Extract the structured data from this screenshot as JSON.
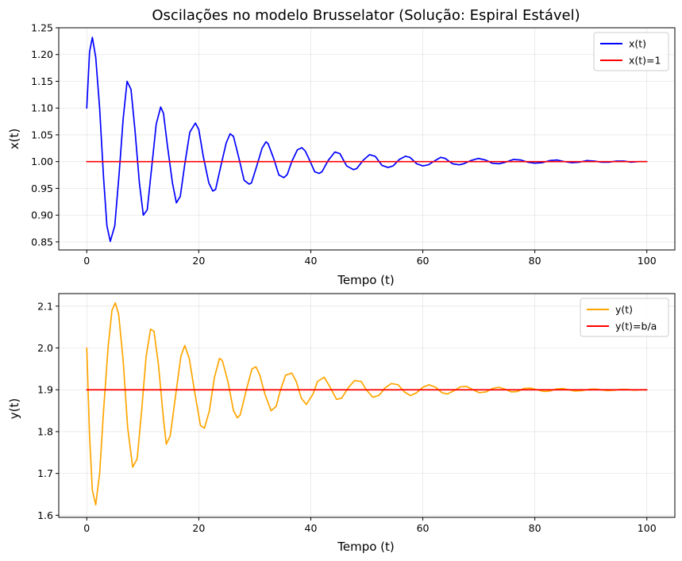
{
  "chart_data": [
    {
      "type": "line",
      "title": "Oscilações no modelo Brusselator (Solução: Espiral Estável)",
      "xlabel": "Tempo (t)",
      "ylabel": "x(t)",
      "xlim": [
        -5,
        105
      ],
      "ylim": [
        0.835,
        1.25
      ],
      "xticks": [
        0,
        20,
        40,
        60,
        80,
        100
      ],
      "xtick_labels": [
        "0",
        "20",
        "40",
        "60",
        "80",
        "100"
      ],
      "yticks": [
        0.85,
        0.9,
        0.95,
        1.0,
        1.05,
        1.1,
        1.15,
        1.2,
        1.25
      ],
      "ytick_labels": [
        "0.85",
        "0.90",
        "0.95",
        "1.00",
        "1.05",
        "1.10",
        "1.15",
        "1.20",
        "1.25"
      ],
      "grid": true,
      "legend_position": "top-right",
      "series": [
        {
          "name": "x(t)",
          "color": "#0000ff",
          "x": [
            0,
            0.5,
            1.0,
            1.6,
            2.3,
            3.0,
            3.6,
            4.2,
            5.0,
            5.8,
            6.5,
            7.2,
            7.9,
            8.6,
            9.4,
            10.1,
            10.8,
            11.6,
            12.4,
            13.2,
            13.7,
            14.4,
            15.3,
            16.0,
            16.7,
            17.5,
            18.4,
            19.4,
            20.0,
            20.8,
            21.8,
            22.5,
            23.0,
            23.9,
            24.9,
            25.6,
            26.2,
            27.2,
            28.1,
            29.0,
            29.4,
            30.3,
            31.3,
            32.0,
            32.4,
            33.4,
            34.3,
            35.2,
            35.8,
            36.6,
            37.6,
            38.4,
            39.0,
            39.9,
            40.7,
            41.5,
            42.0,
            43.1,
            44.3,
            45.2,
            46.4,
            47.6,
            48.2,
            49.4,
            50.5,
            51.5,
            52.7,
            53.8,
            54.7,
            55.8,
            56.9,
            57.7,
            58.9,
            60.0,
            61.0,
            62.2,
            63.2,
            64.0,
            65.3,
            66.5,
            67.3,
            68.6,
            69.9,
            71.2,
            72.4,
            73.6,
            74.8,
            76.2,
            77.5,
            78.7,
            80.0,
            81.3,
            82.7,
            84.0,
            85.3,
            86.6,
            88.0,
            89.3,
            90.6,
            91.9,
            93.2,
            94.6,
            95.9,
            97.2,
            98.5,
            100.0
          ],
          "y": [
            1.1,
            1.205,
            1.232,
            1.195,
            1.1,
            0.97,
            0.88,
            0.851,
            0.88,
            0.98,
            1.08,
            1.15,
            1.135,
            1.06,
            0.96,
            0.9,
            0.91,
            0.99,
            1.07,
            1.102,
            1.09,
            1.03,
            0.96,
            0.923,
            0.935,
            0.995,
            1.055,
            1.072,
            1.06,
            1.01,
            0.96,
            0.945,
            0.948,
            0.99,
            1.035,
            1.052,
            1.047,
            1.005,
            0.965,
            0.958,
            0.96,
            0.99,
            1.025,
            1.037,
            1.033,
            1.005,
            0.975,
            0.97,
            0.976,
            1.0,
            1.022,
            1.026,
            1.02,
            1.0,
            0.981,
            0.978,
            0.981,
            1.002,
            1.018,
            1.015,
            0.992,
            0.985,
            0.987,
            1.003,
            1.013,
            1.01,
            0.993,
            0.989,
            0.992,
            1.004,
            1.01,
            1.008,
            0.996,
            0.992,
            0.994,
            1.002,
            1.008,
            1.006,
            0.996,
            0.994,
            0.996,
            1.002,
            1.006,
            1.003,
            0.997,
            0.996,
            0.999,
            1.004,
            1.003,
            0.999,
            0.997,
            0.998,
            1.002,
            1.003,
            1.0,
            0.998,
            0.999,
            1.002,
            1.001,
            0.999,
            0.999,
            1.001,
            1.001,
            0.999,
            1.0,
            1.0
          ]
        },
        {
          "name": "x(t)=1",
          "color": "#ff0000",
          "x": [
            0,
            100
          ],
          "y": [
            1.0,
            1.0
          ]
        }
      ]
    },
    {
      "type": "line",
      "title": "",
      "xlabel": "Tempo (t)",
      "ylabel": "y(t)",
      "xlim": [
        -5,
        105
      ],
      "ylim": [
        1.595,
        2.13
      ],
      "xticks": [
        0,
        20,
        40,
        60,
        80,
        100
      ],
      "xtick_labels": [
        "0",
        "20",
        "40",
        "60",
        "80",
        "100"
      ],
      "yticks": [
        1.6,
        1.7,
        1.8,
        1.9,
        2.0,
        2.1
      ],
      "ytick_labels": [
        "1.6",
        "1.7",
        "1.8",
        "1.9",
        "2.0",
        "2.1"
      ],
      "grid": true,
      "legend_position": "top-right",
      "series": [
        {
          "name": "y(t)",
          "color": "#ffa500",
          "x": [
            0,
            0.5,
            1.0,
            1.6,
            2.3,
            3.0,
            3.8,
            4.5,
            5.1,
            5.7,
            6.5,
            7.3,
            8.2,
            9.0,
            9.8,
            10.6,
            11.4,
            12.0,
            12.8,
            13.7,
            14.2,
            14.9,
            15.8,
            16.8,
            17.5,
            18.3,
            19.2,
            20.3,
            21.0,
            21.9,
            22.8,
            23.7,
            24.2,
            25.2,
            26.2,
            26.9,
            27.4,
            28.5,
            29.5,
            30.2,
            30.9,
            31.8,
            32.9,
            33.8,
            34.6,
            35.5,
            36.6,
            37.4,
            38.3,
            39.2,
            40.4,
            41.2,
            42.4,
            43.5,
            44.6,
            45.5,
            46.7,
            47.8,
            49.0,
            49.9,
            51.1,
            52.2,
            53.3,
            54.4,
            55.6,
            56.7,
            57.8,
            58.9,
            60.0,
            61.1,
            62.3,
            63.4,
            64.4,
            65.6,
            66.7,
            67.8,
            69.0,
            70.1,
            71.3,
            72.4,
            73.5,
            74.6,
            75.8,
            76.9,
            78.0,
            79.2,
            80.4,
            81.6,
            82.7,
            83.8,
            85.0,
            86.1,
            87.2,
            88.4,
            89.6,
            90.7,
            91.8,
            93.0,
            94.2,
            95.3,
            96.5,
            97.7,
            98.8,
            100.0
          ],
          "y": [
            2.0,
            1.79,
            1.66,
            1.625,
            1.7,
            1.85,
            2.0,
            2.09,
            2.108,
            2.08,
            1.97,
            1.81,
            1.715,
            1.735,
            1.85,
            1.98,
            2.045,
            2.04,
            1.96,
            1.83,
            1.77,
            1.79,
            1.88,
            1.98,
            2.006,
            1.975,
            1.9,
            1.815,
            1.808,
            1.85,
            1.93,
            1.975,
            1.97,
            1.92,
            1.85,
            1.833,
            1.84,
            1.9,
            1.95,
            1.955,
            1.935,
            1.89,
            1.85,
            1.86,
            1.9,
            1.935,
            1.94,
            1.92,
            1.88,
            1.865,
            1.89,
            1.92,
            1.93,
            1.905,
            1.877,
            1.88,
            1.905,
            1.922,
            1.92,
            1.9,
            1.882,
            1.887,
            1.905,
            1.915,
            1.912,
            1.895,
            1.886,
            1.893,
            1.906,
            1.912,
            1.906,
            1.893,
            1.89,
            1.898,
            1.907,
            1.908,
            1.9,
            1.893,
            1.895,
            1.903,
            1.906,
            1.902,
            1.895,
            1.896,
            1.903,
            1.904,
            1.9,
            1.896,
            1.897,
            1.902,
            1.903,
            1.9,
            1.897,
            1.898,
            1.901,
            1.902,
            1.9,
            1.898,
            1.899,
            1.901,
            1.901,
            1.899,
            1.9,
            1.9
          ]
        },
        {
          "name": "y(t)=b/a",
          "color": "#ff0000",
          "x": [
            0,
            100
          ],
          "y": [
            1.9,
            1.9
          ]
        }
      ]
    }
  ]
}
